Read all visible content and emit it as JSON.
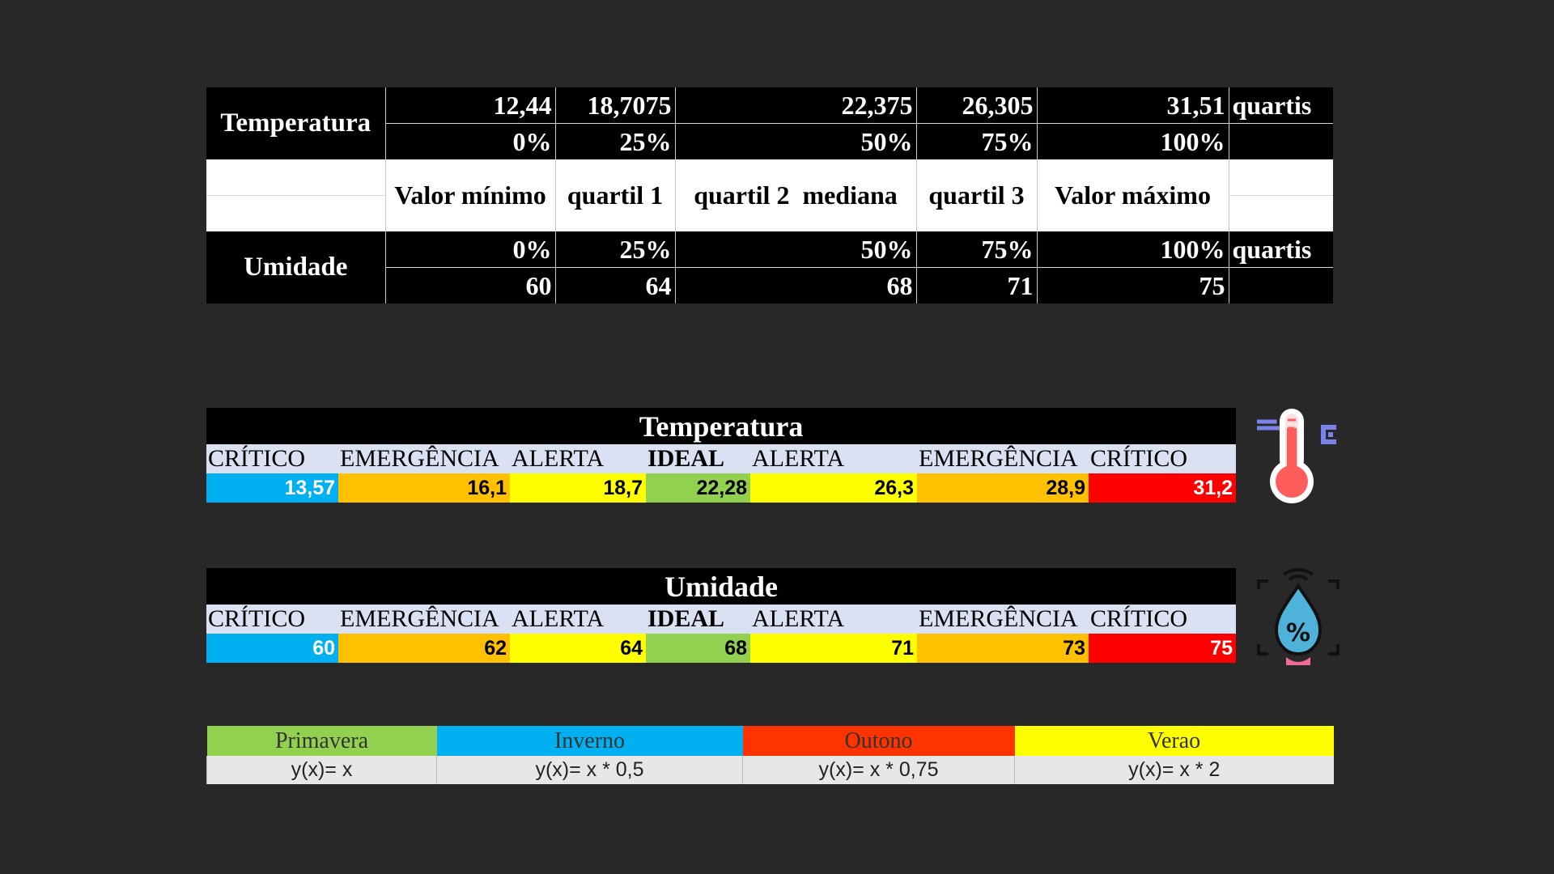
{
  "quartis_table": {
    "temperatura": {
      "label": "Temperatura",
      "values": [
        "12,44",
        "18,7075",
        "22,375",
        "26,305",
        "31,51"
      ],
      "percents": [
        "0%",
        "25%",
        "50%",
        "75%",
        "100%"
      ],
      "tag": "quartis"
    },
    "middle_labels": [
      "Valor mínimo",
      "quartil 1",
      "quartil 2  mediana",
      "quartil 3",
      "Valor máximo"
    ],
    "umidade": {
      "label": "Umidade",
      "percents": [
        "0%",
        "25%",
        "50%",
        "75%",
        "100%"
      ],
      "values": [
        "60",
        "64",
        "68",
        "71",
        "75"
      ],
      "tag": "quartis"
    }
  },
  "scale_temperatura": {
    "title": "Temperatura",
    "labels": [
      "CRÍTICO",
      "EMERGÊNCIA",
      "ALERTA",
      "IDEAL",
      "ALERTA",
      "EMERGÊNCIA",
      "CRÍTICO"
    ],
    "values": [
      "13,57",
      "16,1",
      "18,7",
      "22,28",
      "26,3",
      "28,9",
      "31,2"
    ]
  },
  "scale_umidade": {
    "title": "Umidade",
    "labels": [
      "CRÍTICO",
      "EMERGÊNCIA",
      "ALERTA",
      "IDEAL",
      "ALERTA",
      "EMERGÊNCIA",
      "CRÍTICO"
    ],
    "values": [
      "60",
      "62",
      "64",
      "68",
      "71",
      "73",
      "75"
    ]
  },
  "seasons": {
    "names": [
      "Primavera",
      "Inverno",
      "Outono",
      "Verao"
    ],
    "formulas": [
      "y(x)= x",
      "y(x)= x * 0,5",
      "y(x)= x * 0,75",
      "y(x)= x * 2"
    ]
  },
  "colors": {
    "background": "#282828",
    "critico_low": "#00b0f0",
    "emergencia": "#ffc000",
    "alerta": "#ffff00",
    "ideal": "#92d050",
    "critico_high": "#ff0000",
    "label_row": "#d9e1f2"
  },
  "icons": [
    "thermometer-icon",
    "humidity-icon"
  ]
}
